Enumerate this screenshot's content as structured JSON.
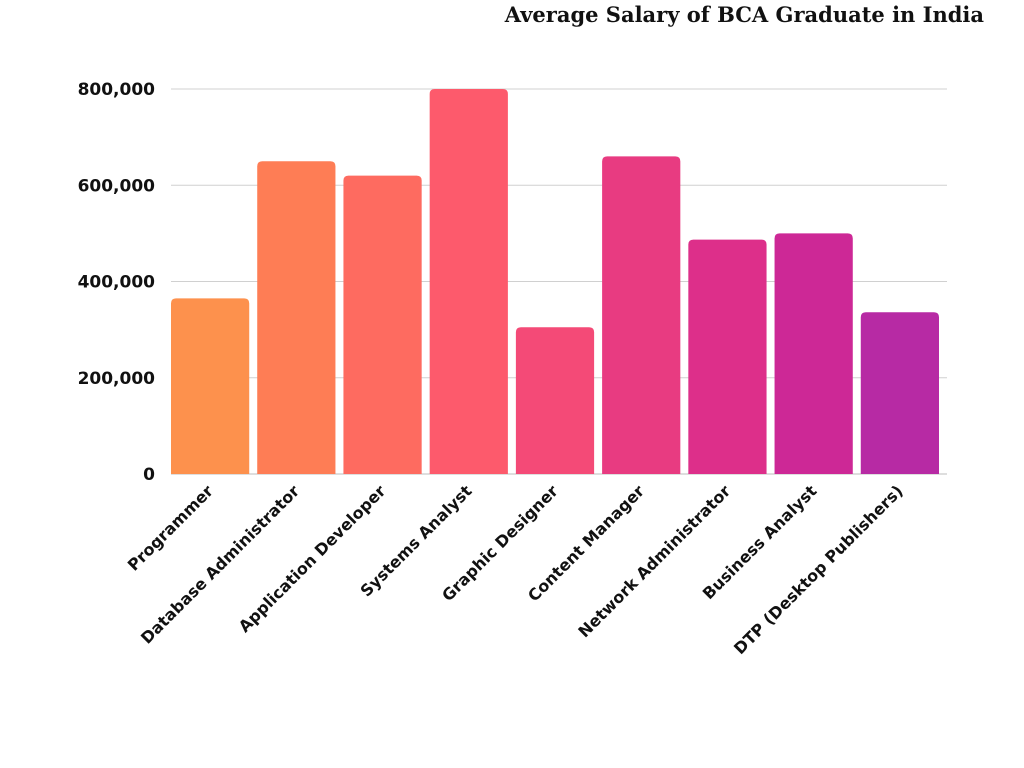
{
  "chart_data": {
    "type": "bar",
    "title": "Average Salary of BCA Graduate in India",
    "xlabel": "",
    "ylabel": "",
    "ylim": [
      0,
      800000
    ],
    "yticks": [
      0,
      200000,
      400000,
      600000,
      800000
    ],
    "ytick_labels": [
      "0",
      "200,000",
      "400,000",
      "600,000",
      "800,000"
    ],
    "grid": true,
    "categories": [
      "Programmer",
      "Database Administrator",
      "Application Developer",
      "Systems Analyst",
      "Graphic Designer",
      "Content Manager",
      "Network Administrator",
      "Business Analyst",
      "DTP (Desktop Publishers)"
    ],
    "values": [
      365000,
      650000,
      620000,
      800000,
      305000,
      660000,
      487000,
      500000,
      336000
    ],
    "colors": [
      "#fd914d",
      "#fe7d55",
      "#fe6b60",
      "#fd5a6c",
      "#f44a77",
      "#e83b81",
      "#dd2f8a",
      "#cd2896",
      "#b72aa4"
    ]
  }
}
